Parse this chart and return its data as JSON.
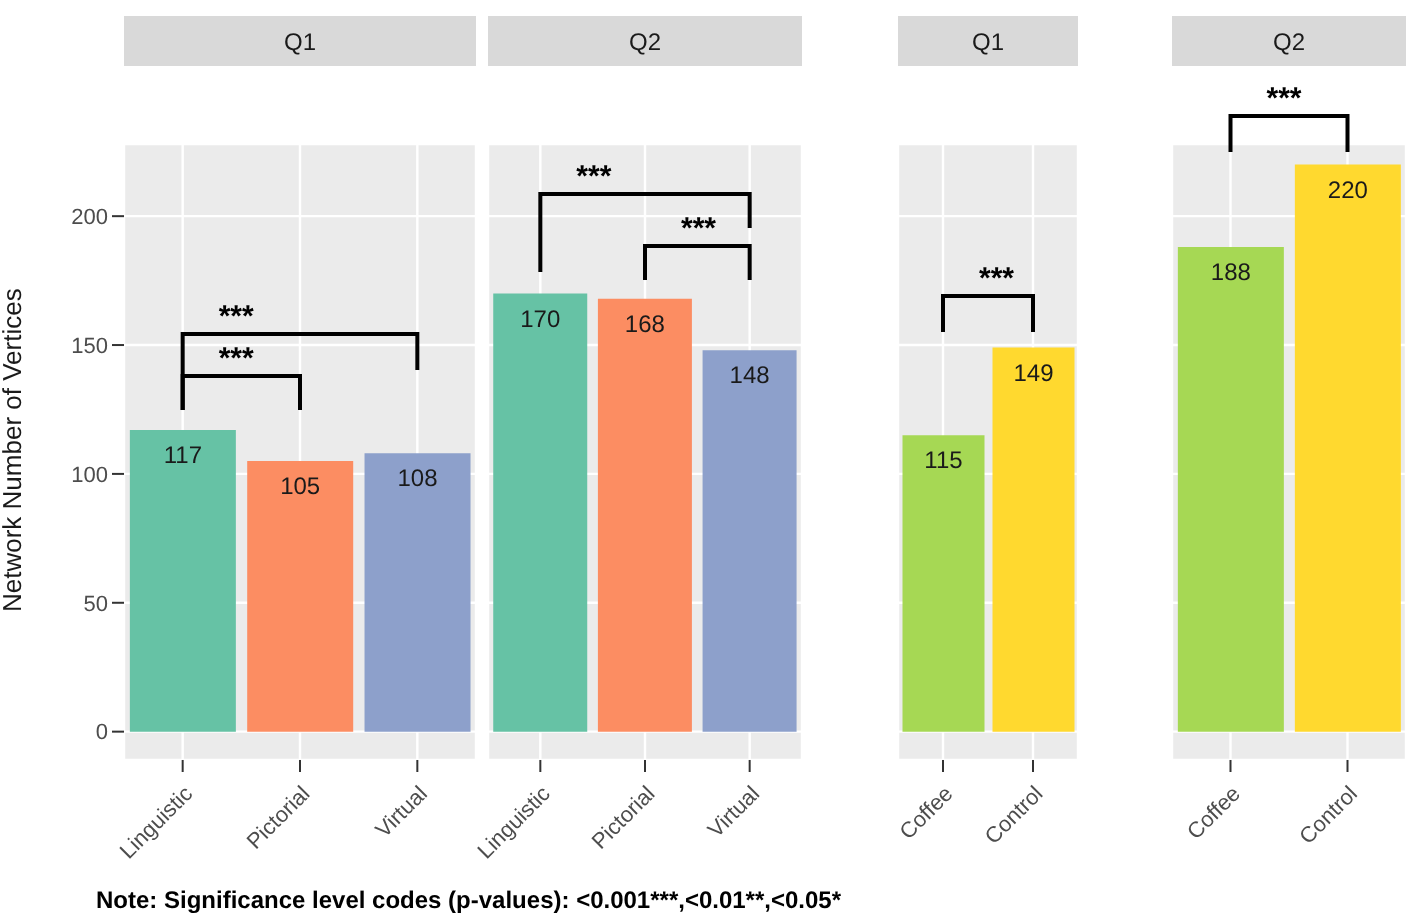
{
  "chart_data": [
    {
      "type": "bar",
      "title": "Q1",
      "ylabel": "Network Number of Vertices",
      "categories": [
        "Linguistic",
        "Pictorial",
        "Virtual"
      ],
      "values": [
        117,
        105,
        108
      ],
      "colors": [
        "#66c2a5",
        "#fc8d62",
        "#8da0cb"
      ],
      "data_labels": true,
      "ylim": [
        -11,
        228
      ],
      "yticks": [
        0,
        50,
        100,
        150,
        200
      ],
      "grid": true,
      "annotations": [
        "***",
        "***",
        "Note: Significance level codes (p-values): <0.001***,<0.01**,<0.05*"
      ]
    },
    {
      "type": "bar",
      "title": "Q2",
      "categories": [
        "Linguistic",
        "Pictorial",
        "Virtual"
      ],
      "values": [
        170,
        168,
        148
      ],
      "colors": [
        "#66c2a5",
        "#fc8d62",
        "#8da0cb"
      ],
      "data_labels": true,
      "ylim": [
        -11,
        228
      ],
      "yticks": [
        0,
        50,
        100,
        150,
        200
      ],
      "grid": true,
      "tick_labels": "x",
      "annotations": [
        "***",
        "***"
      ]
    },
    {
      "type": "bar",
      "title": "Q1",
      "categories": [
        "Coffee",
        "Control"
      ],
      "values": [
        115,
        149
      ],
      "colors": [
        "#a6d854",
        "#ffd92f"
      ],
      "data_labels": true,
      "ylim": [
        -11,
        228
      ],
      "yticks": [
        0,
        50,
        100,
        150,
        200
      ],
      "grid": true,
      "tick_labels": "x",
      "annotations": [
        "***"
      ]
    },
    {
      "type": "bar",
      "title": "Q2",
      "categories": [
        "Coffee",
        "Control"
      ],
      "values": [
        188,
        220
      ],
      "colors": [
        "#a6d854",
        "#ffd92f"
      ],
      "data_labels": true,
      "ylim": [
        -11,
        228
      ],
      "yticks": [
        0,
        50,
        100,
        150,
        200
      ],
      "grid": true,
      "tick_labels": "x",
      "annotations": [
        "***"
      ]
    }
  ]
}
